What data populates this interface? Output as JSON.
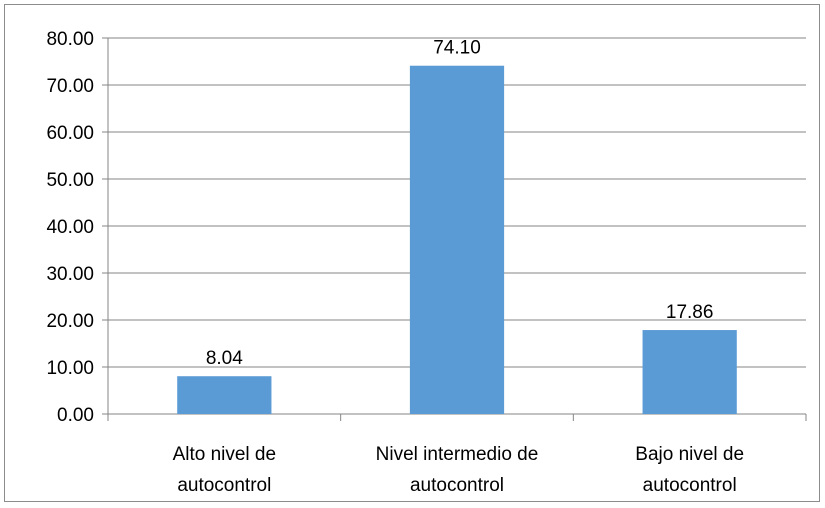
{
  "chart_data": {
    "type": "bar",
    "title": "",
    "xlabel": "",
    "ylabel": "",
    "categories": [
      [
        "Alto nivel de",
        "autocontrol"
      ],
      [
        "Nivel intermedio de",
        "autocontrol"
      ],
      [
        "Bajo nivel de",
        "autocontrol"
      ]
    ],
    "values": [
      8.04,
      74.1,
      17.86
    ],
    "value_labels": [
      "8.04",
      "74.10",
      "17.86"
    ],
    "ylim": [
      0,
      80
    ],
    "y_ticks": [
      0,
      10,
      20,
      30,
      40,
      50,
      60,
      70,
      80
    ],
    "y_tick_labels": [
      "0.00",
      "10.00",
      "20.00",
      "30.00",
      "40.00",
      "50.00",
      "60.00",
      "70.00",
      "80.00"
    ],
    "grid": true,
    "legend": "none",
    "bar_color": "#5b9bd5",
    "grid_color": "#868686"
  }
}
